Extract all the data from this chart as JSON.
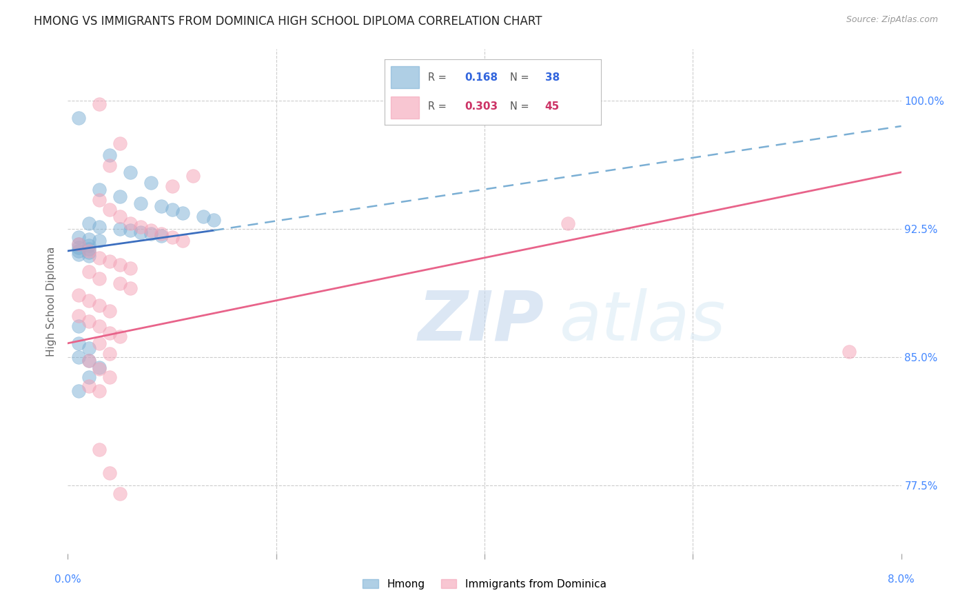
{
  "title": "HMONG VS IMMIGRANTS FROM DOMINICA HIGH SCHOOL DIPLOMA CORRELATION CHART",
  "source": "Source: ZipAtlas.com",
  "ylabel": "High School Diploma",
  "ytick_labels": [
    "77.5%",
    "85.0%",
    "92.5%",
    "100.0%"
  ],
  "ytick_values": [
    0.775,
    0.85,
    0.925,
    1.0
  ],
  "xtick_values": [
    0.0,
    0.02,
    0.04,
    0.06,
    0.08
  ],
  "xlim": [
    0.0,
    0.08
  ],
  "ylim": [
    0.735,
    1.03
  ],
  "legend_r_hmong": "0.168",
  "legend_n_hmong": "38",
  "legend_r_dominica": "0.303",
  "legend_n_dominica": "45",
  "hmong_color": "#7BAFD4",
  "dominica_color": "#F4A0B5",
  "hmong_scatter": [
    [
      0.001,
      0.99
    ],
    [
      0.004,
      0.968
    ],
    [
      0.006,
      0.958
    ],
    [
      0.008,
      0.952
    ],
    [
      0.003,
      0.948
    ],
    [
      0.005,
      0.944
    ],
    [
      0.007,
      0.94
    ],
    [
      0.009,
      0.938
    ],
    [
      0.01,
      0.936
    ],
    [
      0.011,
      0.934
    ],
    [
      0.013,
      0.932
    ],
    [
      0.014,
      0.93
    ],
    [
      0.002,
      0.928
    ],
    [
      0.003,
      0.926
    ],
    [
      0.005,
      0.925
    ],
    [
      0.006,
      0.924
    ],
    [
      0.007,
      0.923
    ],
    [
      0.008,
      0.922
    ],
    [
      0.009,
      0.921
    ],
    [
      0.001,
      0.92
    ],
    [
      0.002,
      0.919
    ],
    [
      0.003,
      0.918
    ],
    [
      0.001,
      0.916
    ],
    [
      0.002,
      0.915
    ],
    [
      0.001,
      0.914
    ],
    [
      0.002,
      0.913
    ],
    [
      0.001,
      0.912
    ],
    [
      0.002,
      0.911
    ],
    [
      0.001,
      0.91
    ],
    [
      0.002,
      0.909
    ],
    [
      0.001,
      0.868
    ],
    [
      0.001,
      0.858
    ],
    [
      0.002,
      0.855
    ],
    [
      0.001,
      0.85
    ],
    [
      0.002,
      0.848
    ],
    [
      0.003,
      0.844
    ],
    [
      0.002,
      0.838
    ],
    [
      0.001,
      0.83
    ]
  ],
  "dominica_scatter": [
    [
      0.003,
      0.998
    ],
    [
      0.005,
      0.975
    ],
    [
      0.004,
      0.962
    ],
    [
      0.012,
      0.956
    ],
    [
      0.01,
      0.95
    ],
    [
      0.003,
      0.942
    ],
    [
      0.004,
      0.936
    ],
    [
      0.005,
      0.932
    ],
    [
      0.006,
      0.928
    ],
    [
      0.007,
      0.926
    ],
    [
      0.008,
      0.924
    ],
    [
      0.009,
      0.922
    ],
    [
      0.01,
      0.92
    ],
    [
      0.011,
      0.918
    ],
    [
      0.001,
      0.916
    ],
    [
      0.002,
      0.912
    ],
    [
      0.003,
      0.908
    ],
    [
      0.004,
      0.906
    ],
    [
      0.005,
      0.904
    ],
    [
      0.006,
      0.902
    ],
    [
      0.002,
      0.9
    ],
    [
      0.003,
      0.896
    ],
    [
      0.005,
      0.893
    ],
    [
      0.006,
      0.89
    ],
    [
      0.001,
      0.886
    ],
    [
      0.002,
      0.883
    ],
    [
      0.003,
      0.88
    ],
    [
      0.004,
      0.877
    ],
    [
      0.001,
      0.874
    ],
    [
      0.002,
      0.871
    ],
    [
      0.003,
      0.868
    ],
    [
      0.004,
      0.864
    ],
    [
      0.005,
      0.862
    ],
    [
      0.003,
      0.858
    ],
    [
      0.004,
      0.852
    ],
    [
      0.002,
      0.848
    ],
    [
      0.003,
      0.843
    ],
    [
      0.004,
      0.838
    ],
    [
      0.002,
      0.833
    ],
    [
      0.003,
      0.83
    ],
    [
      0.003,
      0.796
    ],
    [
      0.004,
      0.782
    ],
    [
      0.005,
      0.77
    ],
    [
      0.075,
      0.853
    ],
    [
      0.048,
      0.928
    ]
  ],
  "hmong_line_solid": [
    [
      0.0,
      0.912
    ],
    [
      0.014,
      0.924
    ]
  ],
  "hmong_line_dashed": [
    [
      0.014,
      0.924
    ],
    [
      0.08,
      0.985
    ]
  ],
  "dominica_line": [
    [
      0.0,
      0.858
    ],
    [
      0.08,
      0.958
    ]
  ],
  "background_color": "#FFFFFF",
  "grid_color": "#CCCCCC",
  "watermark_zip_color": "#C5D8EE",
  "watermark_atlas_color": "#D5E8F5"
}
